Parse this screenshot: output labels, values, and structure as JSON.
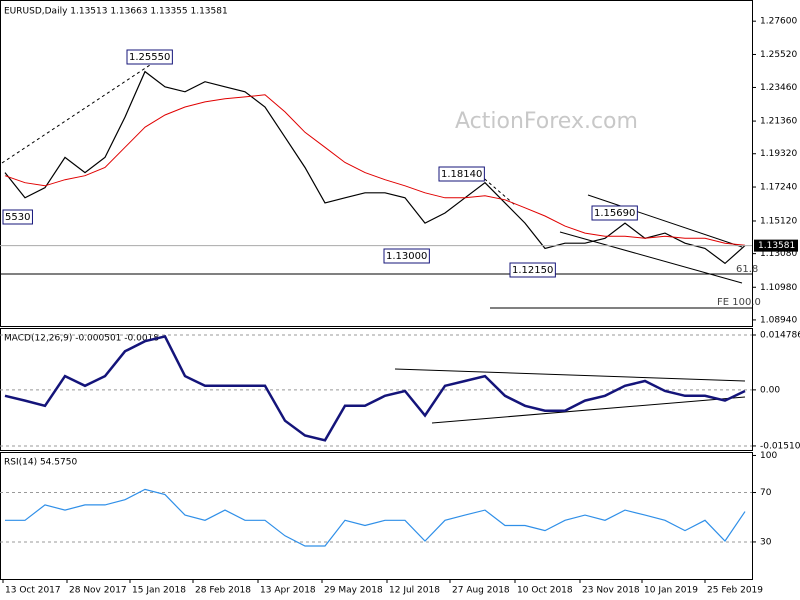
{
  "chart_data": [
    {
      "type": "line",
      "title": "EURUSD,Daily  1.13513 1.13663 1.13355 1.13581",
      "series": [
        {
          "name": "EURUSD",
          "color": "#000000",
          "values": [
            1.1814,
            1.1657,
            1.172,
            1.1909,
            1.1814,
            1.1909,
            1.2161,
            1.2445,
            1.235,
            1.2319,
            1.2382,
            1.235,
            1.2319,
            1.2224,
            1.2035,
            1.1846,
            1.1625,
            1.1657,
            1.1688,
            1.1688,
            1.1657,
            1.1499,
            1.1562,
            1.1657,
            1.1751,
            1.1625,
            1.1499,
            1.1341,
            1.1373,
            1.1373,
            1.1404,
            1.1499,
            1.1404,
            1.1436,
            1.1373,
            1.1341,
            1.1247,
            1.1358
          ]
        },
        {
          "name": "MA",
          "color": "#e00000",
          "values": [
            1.1795,
            1.1751,
            1.1732,
            1.177,
            1.1795,
            1.1846,
            1.1972,
            1.2098,
            1.2174,
            1.2224,
            1.2256,
            1.2275,
            1.2287,
            1.23,
            1.2193,
            1.2066,
            1.1972,
            1.1877,
            1.1814,
            1.177,
            1.1732,
            1.1688,
            1.1657,
            1.1657,
            1.1669,
            1.1644,
            1.1594,
            1.1543,
            1.148,
            1.1436,
            1.1417,
            1.1417,
            1.1404,
            1.1417,
            1.1404,
            1.1404,
            1.1373,
            1.136
          ]
        }
      ],
      "xlim": [
        -0.25,
        37.35
      ],
      "ylim": [
        1.0856,
        1.2886
      ],
      "yticks": [
        {
          "value": 1.276,
          "label": "1.27600"
        },
        {
          "value": 1.2552,
          "label": "1.25520"
        },
        {
          "value": 1.2346,
          "label": "1.23460"
        },
        {
          "value": 1.2136,
          "label": "1.21360"
        },
        {
          "value": 1.1932,
          "label": "1.19320"
        },
        {
          "value": 1.1724,
          "label": "1.17240"
        },
        {
          "value": 1.1512,
          "label": "1.15120"
        },
        {
          "value": 1.1308,
          "label": "1.13080"
        },
        {
          "value": 1.1098,
          "label": "1.10980"
        },
        {
          "value": 1.0894,
          "label": "1.08940"
        }
      ],
      "grid": false,
      "annotations": [
        "1.25550",
        "1.18140",
        "1.13000",
        "1.12150",
        "1.15690",
        "5530",
        "61.8",
        "FE 100.0"
      ],
      "last_label": "1.13581",
      "watermark": "ActionForex.com"
    },
    {
      "type": "line",
      "title": "MACD(12,26,9) -0.000501 -0.0018",
      "series": [
        {
          "name": "MACD",
          "color": "#14147a",
          "values": [
            -0.0016,
            -0.0029,
            -0.0043,
            0.0037,
            0.0011,
            0.0037,
            0.0104,
            0.0131,
            0.0144,
            0.0037,
            0.0011,
            0.0011,
            0.0011,
            0.0011,
            -0.0083,
            -0.0123,
            -0.0136,
            -0.0043,
            -0.0043,
            -0.0016,
            -0.0003,
            -0.0069,
            0.0011,
            0.0024,
            0.0037,
            -0.0016,
            -0.0043,
            -0.0056,
            -0.0056,
            -0.0029,
            -0.0016,
            0.0011,
            0.0024,
            -0.0003,
            -0.0016,
            -0.0016,
            -0.0029,
            -0.0003
          ]
        }
      ],
      "xlim": [
        -0.25,
        37.35
      ],
      "ylim": [
        -0.0162,
        0.0164
      ],
      "yticks": [
        0.014786,
        {
          "value": 0,
          "label": "0.00"
        },
        -0.015107
      ],
      "grid": true
    },
    {
      "type": "line",
      "title": "RSI(14) 54.5750",
      "series": [
        {
          "name": "RSI",
          "color": "#2f8fe8",
          "values": [
            47.5,
            47.5,
            60,
            55.8,
            60,
            60,
            64.2,
            72.5,
            68.3,
            51.7,
            47.5,
            55.8,
            47.5,
            47.5,
            35,
            26.7,
            26.7,
            47.5,
            43.3,
            47.5,
            47.5,
            30.8,
            47.5,
            51.7,
            55.8,
            43.3,
            43.3,
            39.2,
            47.5,
            51.7,
            47.5,
            55.8,
            51.7,
            47.5,
            39.2,
            47.5,
            30.8,
            54.6
          ]
        }
      ],
      "xlim": [
        -0.25,
        37.35
      ],
      "ylim": [
        0,
        102
      ],
      "yticks": [
        100,
        70,
        30
      ],
      "grid": true,
      "xticks": [
        {
          "value": -0.1,
          "label": "13 Oct 2017"
        },
        {
          "value": 3.1,
          "label": "28 Nov 2017"
        },
        {
          "value": 6.25,
          "label": "15 Jan 2018"
        },
        {
          "value": 9.4,
          "label": "28 Feb 2018"
        },
        {
          "value": 12.65,
          "label": "13 Apr 2018"
        },
        {
          "value": 15.85,
          "label": "29 May 2018"
        },
        {
          "value": 19.1,
          "label": "12 Jul 2018"
        },
        {
          "value": 22.25,
          "label": "27 Aug 2018"
        },
        {
          "value": 25.5,
          "label": "10 Oct 2018"
        },
        {
          "value": 28.75,
          "label": "23 Nov 2018"
        },
        {
          "value": 31.85,
          "label": "10 Jan 2019"
        },
        {
          "value": 35,
          "label": "25 Feb 2019"
        }
      ]
    }
  ]
}
